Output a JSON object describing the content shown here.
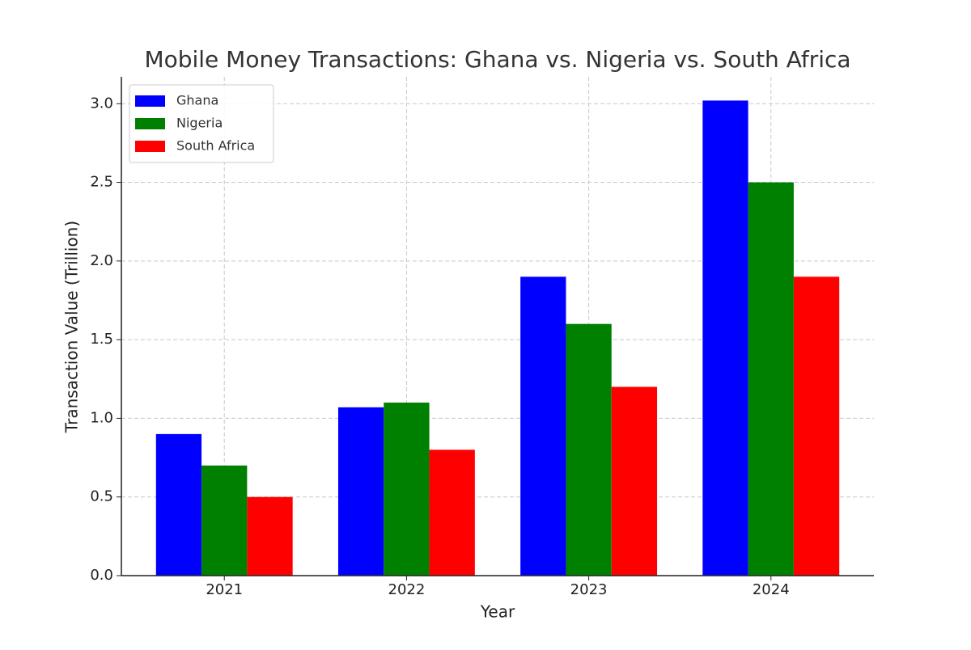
{
  "chart_data": {
    "type": "bar",
    "title": "Mobile Money Transactions: Ghana vs. Nigeria vs. South Africa",
    "x_label": "Year",
    "y_label": "Transaction Value (Trillion)",
    "categories": [
      "2021",
      "2022",
      "2023",
      "2024"
    ],
    "series": [
      {
        "name": "Ghana",
        "color": "#0000ff",
        "values": [
          0.9,
          1.07,
          1.9,
          3.02
        ]
      },
      {
        "name": "Nigeria",
        "color": "#008000",
        "values": [
          0.7,
          1.1,
          1.6,
          2.5
        ]
      },
      {
        "name": "South Africa",
        "color": "#ff0000",
        "values": [
          0.5,
          0.8,
          1.2,
          1.9
        ]
      }
    ],
    "ylim": [
      0,
      3.171
    ],
    "yticks": [
      {
        "value": 0,
        "label": "0.0"
      },
      0.5,
      {
        "value": 1,
        "label": "1.0"
      },
      1.5,
      {
        "value": 2,
        "label": "2.0"
      },
      2.5,
      {
        "value": 3,
        "label": "3.0"
      }
    ],
    "grid": true,
    "legend": "upper-left"
  }
}
